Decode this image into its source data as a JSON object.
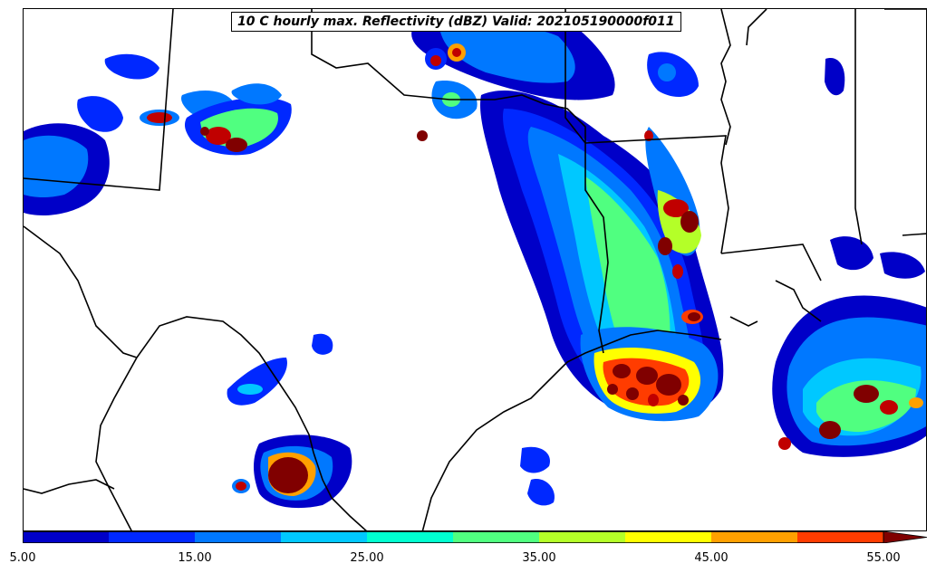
{
  "title": "10 C hourly max. Reflectivity (dBZ) Valid: 202105190000f011",
  "colorbar": {
    "tick_labels": [
      "5.00",
      "15.00",
      "25.00",
      "35.00",
      "45.00",
      "55.00"
    ],
    "colors": [
      "#0000c8",
      "#0028ff",
      "#0078ff",
      "#00c8ff",
      "#00ffd0",
      "#50ff80",
      "#b4ff28",
      "#ffff00",
      "#ffa000",
      "#ff3c00",
      "#c00000",
      "#800000"
    ],
    "extend": "max"
  }
}
